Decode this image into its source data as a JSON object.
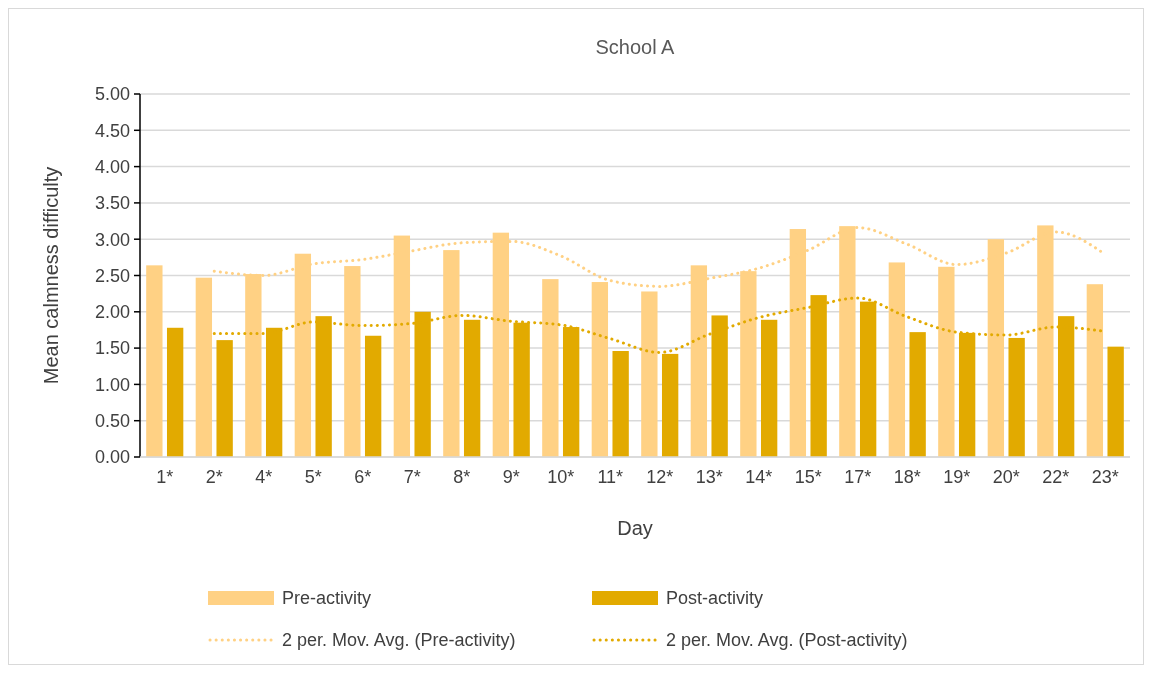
{
  "chart_data": {
    "type": "bar",
    "title": "School A",
    "xlabel": "Day",
    "ylabel": "Mean calmness difficulty",
    "categories": [
      "1*",
      "2*",
      "4*",
      "5*",
      "6*",
      "7*",
      "8*",
      "9*",
      "10*",
      "11*",
      "12*",
      "13*",
      "14*",
      "15*",
      "17*",
      "18*",
      "19*",
      "20*",
      "22*",
      "23*"
    ],
    "series": [
      {
        "name": "Pre-activity",
        "color": "#ffd184",
        "values": [
          2.64,
          2.47,
          2.52,
          2.8,
          2.63,
          3.05,
          2.85,
          3.09,
          2.45,
          2.41,
          2.28,
          2.64,
          2.56,
          3.14,
          3.18,
          2.68,
          2.62,
          3.0,
          3.19,
          2.38
        ]
      },
      {
        "name": "Post-activity",
        "color": "#e2aa00",
        "values": [
          1.78,
          1.61,
          1.78,
          1.94,
          1.67,
          2.0,
          1.89,
          1.85,
          1.79,
          1.46,
          1.42,
          1.95,
          1.89,
          2.23,
          2.14,
          1.72,
          1.71,
          1.64,
          1.94,
          1.52
        ]
      },
      {
        "name": "2 per. Mov. Avg. (Pre-activity)",
        "type": "line",
        "line_style": "dotted",
        "marker": "none",
        "color": "#ffd184",
        "values": [
          null,
          2.56,
          2.5,
          2.66,
          2.72,
          2.84,
          2.95,
          2.97,
          2.77,
          2.43,
          2.35,
          2.46,
          2.6,
          2.85,
          3.16,
          2.93,
          2.65,
          2.81,
          3.1,
          2.79
        ]
      },
      {
        "name": "2 per. Mov. Avg. (Post-activity)",
        "type": "line",
        "line_style": "dotted",
        "marker": "none",
        "color": "#e2aa00",
        "values": [
          null,
          1.7,
          1.7,
          1.86,
          1.81,
          1.84,
          1.95,
          1.87,
          1.82,
          1.63,
          1.44,
          1.69,
          1.92,
          2.06,
          2.19,
          1.93,
          1.72,
          1.68,
          1.79,
          1.73
        ]
      }
    ],
    "ylim": [
      0,
      5
    ],
    "yticks": [
      {
        "value": 0,
        "label": "0.00"
      },
      {
        "value": 0.5,
        "label": "0.50"
      },
      {
        "value": 1,
        "label": "1.00"
      },
      {
        "value": 1.5,
        "label": "1.50"
      },
      {
        "value": 2,
        "label": "2.00"
      },
      {
        "value": 2.5,
        "label": "2.50"
      },
      {
        "value": 3,
        "label": "3.00"
      },
      {
        "value": 3.5,
        "label": "3.50"
      },
      {
        "value": 4,
        "label": "4.00"
      },
      {
        "value": 4.5,
        "label": "4.50"
      },
      {
        "value": 5,
        "label": "5.00"
      }
    ],
    "grid": "y",
    "legend": "bottom"
  }
}
